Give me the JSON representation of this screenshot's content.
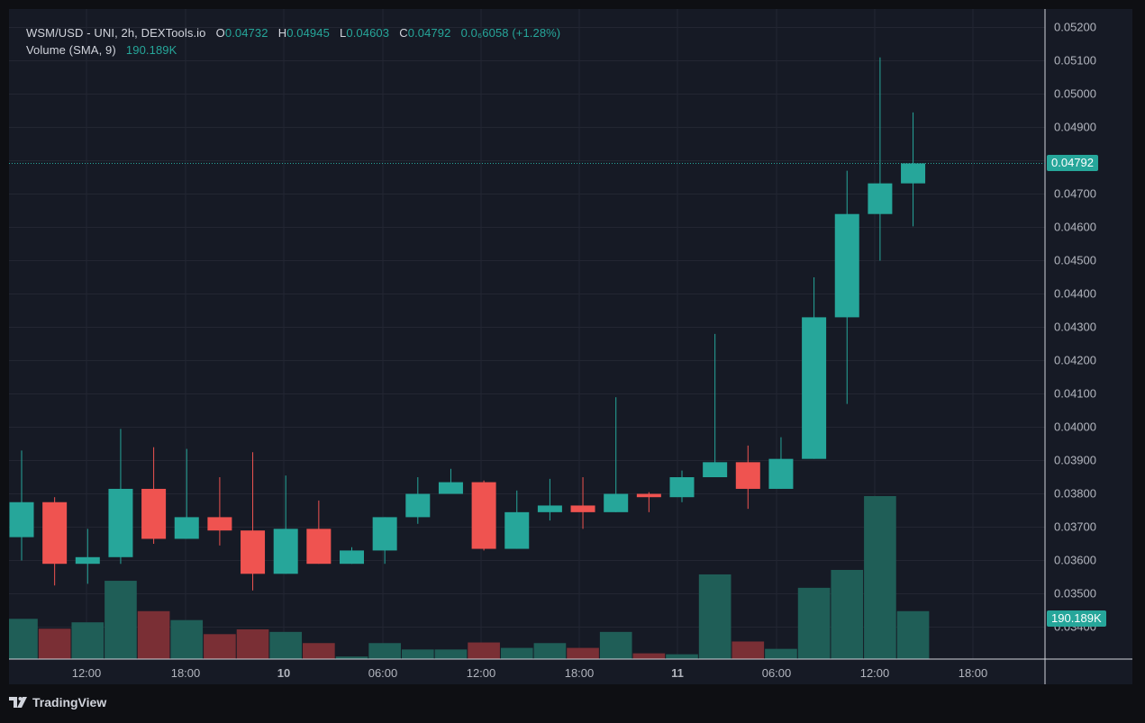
{
  "legend": {
    "title": "WSM/USD - UNI, 2h, DEXTools.io",
    "o_label": "O",
    "o_value": "0.04732",
    "h_label": "H",
    "h_value": "0.04945",
    "l_label": "L",
    "l_value": "0.04603",
    "c_label": "C",
    "c_value": "0.04792",
    "change": "0.0₆6058 (+1.28%)",
    "volume_label": "Volume (SMA, 9)",
    "volume_value": "190.189K"
  },
  "last_price_label": "0.04792",
  "last_volume_label": "190.189K",
  "branding": "TradingView",
  "colors": {
    "background": "#161a25",
    "up": "#26a69a",
    "down": "#ef5350",
    "volume_up": "#1f5e57",
    "volume_down": "#7a2f35",
    "grid": "#232632",
    "text": "#b2b5be"
  },
  "chart_data": {
    "type": "candlestick",
    "interval": "2h",
    "y_ticks": [
      "0.05200",
      "0.05100",
      "0.05000",
      "0.04900",
      "0.04800",
      "0.04700",
      "0.04600",
      "0.04500",
      "0.04400",
      "0.04300",
      "0.04200",
      "0.04100",
      "0.04000",
      "0.03900",
      "0.03800",
      "0.03700",
      "0.03600",
      "0.03500",
      "0.03400"
    ],
    "ylim": [
      0.0334,
      0.0525
    ],
    "x_ticks": [
      "12:00",
      "18:00",
      "10",
      "06:00",
      "12:00",
      "18:00",
      "11",
      "06:00",
      "12:00",
      "18:00"
    ],
    "candles": [
      {
        "o": 0.0367,
        "h": 0.0393,
        "l": 0.036,
        "c": 0.03775,
        "v": 126
      },
      {
        "o": 0.03775,
        "h": 0.0379,
        "l": 0.03525,
        "c": 0.0359,
        "v": 95
      },
      {
        "o": 0.0359,
        "h": 0.03695,
        "l": 0.0353,
        "c": 0.0361,
        "v": 115
      },
      {
        "o": 0.0361,
        "h": 0.03995,
        "l": 0.0359,
        "c": 0.03815,
        "v": 245
      },
      {
        "o": 0.03815,
        "h": 0.0394,
        "l": 0.0365,
        "c": 0.03665,
        "v": 150
      },
      {
        "o": 0.03665,
        "h": 0.03935,
        "l": 0.03665,
        "c": 0.0373,
        "v": 122
      },
      {
        "o": 0.0373,
        "h": 0.0385,
        "l": 0.03645,
        "c": 0.0369,
        "v": 78
      },
      {
        "o": 0.0369,
        "h": 0.03925,
        "l": 0.0351,
        "c": 0.0356,
        "v": 93
      },
      {
        "o": 0.0356,
        "h": 0.03855,
        "l": 0.0356,
        "c": 0.03695,
        "v": 85
      },
      {
        "o": 0.03695,
        "h": 0.0378,
        "l": 0.0359,
        "c": 0.0359,
        "v": 50
      },
      {
        "o": 0.0359,
        "h": 0.0364,
        "l": 0.0359,
        "c": 0.0363,
        "v": 8
      },
      {
        "o": 0.0363,
        "h": 0.0373,
        "l": 0.0359,
        "c": 0.0373,
        "v": 50
      },
      {
        "o": 0.0373,
        "h": 0.0385,
        "l": 0.0371,
        "c": 0.038,
        "v": 30
      },
      {
        "o": 0.038,
        "h": 0.03875,
        "l": 0.038,
        "c": 0.03835,
        "v": 30
      },
      {
        "o": 0.03835,
        "h": 0.0384,
        "l": 0.0363,
        "c": 0.03635,
        "v": 52
      },
      {
        "o": 0.03635,
        "h": 0.0381,
        "l": 0.03635,
        "c": 0.03745,
        "v": 35
      },
      {
        "o": 0.03745,
        "h": 0.03845,
        "l": 0.0372,
        "c": 0.03765,
        "v": 50
      },
      {
        "o": 0.03765,
        "h": 0.0385,
        "l": 0.03695,
        "c": 0.03745,
        "v": 35
      },
      {
        "o": 0.03745,
        "h": 0.0409,
        "l": 0.03745,
        "c": 0.038,
        "v": 85
      },
      {
        "o": 0.038,
        "h": 0.03805,
        "l": 0.03745,
        "c": 0.0379,
        "v": 18
      },
      {
        "o": 0.0379,
        "h": 0.0387,
        "l": 0.03775,
        "c": 0.0385,
        "v": 15
      },
      {
        "o": 0.0385,
        "h": 0.0428,
        "l": 0.0385,
        "c": 0.03895,
        "v": 265
      },
      {
        "o": 0.03895,
        "h": 0.03945,
        "l": 0.03755,
        "c": 0.03815,
        "v": 55
      },
      {
        "o": 0.03815,
        "h": 0.0397,
        "l": 0.03815,
        "c": 0.03905,
        "v": 32
      },
      {
        "o": 0.03905,
        "h": 0.0445,
        "l": 0.03905,
        "c": 0.0433,
        "v": 223
      },
      {
        "o": 0.0433,
        "h": 0.0477,
        "l": 0.0407,
        "c": 0.0464,
        "v": 279
      },
      {
        "o": 0.0464,
        "h": 0.0511,
        "l": 0.045,
        "c": 0.04732,
        "v": 510
      },
      {
        "o": 0.04732,
        "h": 0.04945,
        "l": 0.04603,
        "c": 0.04792,
        "v": 150
      }
    ]
  }
}
